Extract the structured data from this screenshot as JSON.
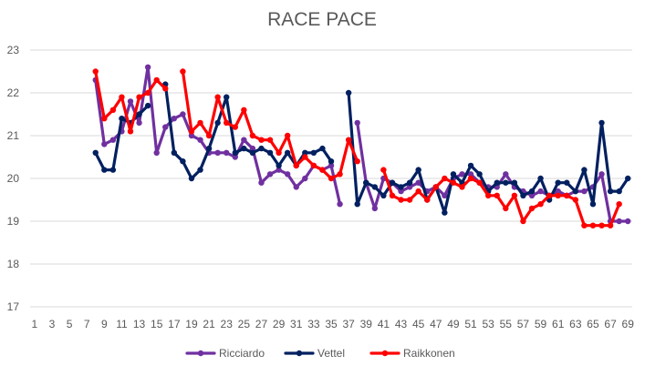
{
  "chart_data": {
    "type": "line",
    "title": "RACE PACE",
    "xlabel": "",
    "ylabel": "",
    "xlim": [
      1,
      69
    ],
    "ylim": [
      17,
      23
    ],
    "y_ticks": [
      17,
      18,
      19,
      20,
      21,
      22,
      23
    ],
    "x_tick_labels": [
      "1",
      "3",
      "5",
      "7",
      "9",
      "11",
      "13",
      "15",
      "17",
      "19",
      "21",
      "23",
      "25",
      "27",
      "29",
      "31",
      "33",
      "35",
      "37",
      "39",
      "41",
      "43",
      "45",
      "47",
      "49",
      "51",
      "53",
      "55",
      "57",
      "59",
      "61",
      "63",
      "65",
      "67",
      "69"
    ],
    "grid": true,
    "legend_position": "bottom",
    "x": [
      8,
      9,
      10,
      11,
      12,
      13,
      14,
      15,
      16,
      17,
      18,
      19,
      20,
      21,
      22,
      23,
      24,
      25,
      26,
      27,
      28,
      29,
      30,
      31,
      32,
      33,
      34,
      35,
      36,
      37,
      38,
      39,
      40,
      41,
      42,
      43,
      44,
      45,
      46,
      47,
      48,
      49,
      50,
      51,
      52,
      53,
      54,
      55,
      56,
      57,
      58,
      59,
      60,
      61,
      62,
      63,
      64,
      65,
      66,
      67,
      68,
      69
    ],
    "series": [
      {
        "name": "Ricciardo",
        "color": "#7030a0",
        "values": [
          22.3,
          20.8,
          20.9,
          21.1,
          21.8,
          21.3,
          22.6,
          20.6,
          21.2,
          21.4,
          21.5,
          21.0,
          20.9,
          20.6,
          20.6,
          20.6,
          20.5,
          20.9,
          20.7,
          19.9,
          20.1,
          20.2,
          20.1,
          19.8,
          20.0,
          20.3,
          20.2,
          20.3,
          19.4,
          null,
          21.3,
          19.9,
          19.3,
          20.0,
          19.9,
          19.7,
          19.8,
          19.9,
          19.7,
          19.8,
          19.6,
          20.0,
          20.1,
          20.1,
          19.9,
          19.8,
          19.8,
          20.1,
          19.8,
          19.7,
          19.6,
          19.7,
          19.6,
          19.7,
          19.6,
          19.7,
          19.7,
          19.8,
          20.1,
          19.0,
          19.0,
          19.0
        ]
      },
      {
        "name": "Vettel",
        "color": "#002060",
        "values": [
          20.6,
          20.2,
          20.2,
          21.4,
          21.3,
          21.5,
          21.7,
          null,
          22.2,
          20.6,
          20.4,
          20.0,
          20.2,
          20.7,
          21.3,
          21.9,
          20.6,
          20.7,
          20.6,
          20.7,
          20.6,
          20.3,
          20.6,
          20.3,
          20.6,
          20.6,
          20.7,
          20.4,
          null,
          22.0,
          19.4,
          19.9,
          19.8,
          19.6,
          19.9,
          19.8,
          19.9,
          20.2,
          19.5,
          19.8,
          19.2,
          20.1,
          19.9,
          20.3,
          20.1,
          19.7,
          19.9,
          19.9,
          19.9,
          19.6,
          19.7,
          20.0,
          19.5,
          19.9,
          19.9,
          19.7,
          20.2,
          19.4,
          21.3,
          19.7,
          19.7,
          20.0
        ]
      },
      {
        "name": "Raikkonen",
        "color": "#ff0000",
        "values": [
          22.5,
          21.4,
          21.6,
          21.9,
          21.1,
          21.9,
          22.0,
          22.3,
          22.1,
          null,
          22.5,
          21.1,
          21.3,
          21.0,
          21.9,
          21.3,
          21.2,
          21.6,
          21.0,
          20.9,
          20.9,
          20.6,
          21.0,
          20.3,
          20.5,
          20.3,
          20.2,
          20.0,
          20.1,
          20.9,
          20.4,
          null,
          null,
          20.2,
          19.6,
          19.5,
          19.5,
          19.7,
          19.5,
          19.8,
          20.0,
          19.9,
          19.8,
          20.0,
          19.9,
          19.6,
          19.6,
          19.3,
          19.6,
          19.0,
          19.3,
          19.4,
          19.6,
          19.6,
          19.6,
          19.5,
          18.9,
          18.9,
          18.9,
          18.9,
          19.4,
          null
        ]
      }
    ]
  }
}
